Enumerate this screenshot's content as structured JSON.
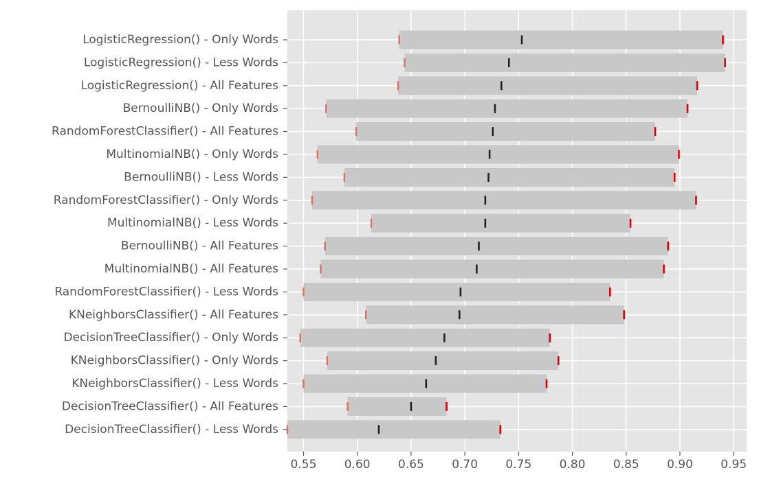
{
  "chart_data": {
    "type": "range-bar",
    "title": "",
    "xlabel": "",
    "ylabel": "",
    "xlim": [
      0.535,
      0.962
    ],
    "xticks": [
      0.55,
      0.6,
      0.65,
      0.7,
      0.75,
      0.8,
      0.85,
      0.9,
      0.95
    ],
    "xtick_labels": [
      "0.55",
      "0.60",
      "0.65",
      "0.70",
      "0.75",
      "0.80",
      "0.85",
      "0.90",
      "0.95"
    ],
    "grid": true,
    "colors": {
      "background": "#e5e5e5",
      "grid": "#ffffff",
      "bar": "#c8c8c8",
      "min_marker": "#e07060",
      "max_marker": "#dd0000",
      "mean_marker": "#222222"
    },
    "rows": [
      {
        "label": "LogisticRegression() - Only Words",
        "min": 0.639,
        "mean": 0.753,
        "max": 0.94
      },
      {
        "label": "LogisticRegression() - Less Words",
        "min": 0.644,
        "mean": 0.741,
        "max": 0.942
      },
      {
        "label": "LogisticRegression() - All Features",
        "min": 0.638,
        "mean": 0.734,
        "max": 0.916
      },
      {
        "label": "BernoulliNB() - Only Words",
        "min": 0.571,
        "mean": 0.728,
        "max": 0.907
      },
      {
        "label": "RandomForestClassifier() - All Features",
        "min": 0.599,
        "mean": 0.726,
        "max": 0.877
      },
      {
        "label": "MultinomialNB() - Only Words",
        "min": 0.563,
        "mean": 0.723,
        "max": 0.899
      },
      {
        "label": "BernoulliNB() - Less Words",
        "min": 0.588,
        "mean": 0.722,
        "max": 0.895
      },
      {
        "label": "RandomForestClassifier() - Only Words",
        "min": 0.558,
        "mean": 0.719,
        "max": 0.915
      },
      {
        "label": "MultinomialNB() - Less Words",
        "min": 0.613,
        "mean": 0.719,
        "max": 0.854
      },
      {
        "label": "BernoulliNB() - All Features",
        "min": 0.57,
        "mean": 0.713,
        "max": 0.889
      },
      {
        "label": "MultinomialNB() - All Features",
        "min": 0.566,
        "mean": 0.711,
        "max": 0.885
      },
      {
        "label": "RandomForestClassifier() - Less Words",
        "min": 0.55,
        "mean": 0.696,
        "max": 0.835
      },
      {
        "label": "KNeighborsClassifier() - All Features",
        "min": 0.608,
        "mean": 0.695,
        "max": 0.848
      },
      {
        "label": "DecisionTreeClassifier() - Only Words",
        "min": 0.547,
        "mean": 0.681,
        "max": 0.779
      },
      {
        "label": "KNeighborsClassifier() - Only Words",
        "min": 0.572,
        "mean": 0.673,
        "max": 0.787
      },
      {
        "label": "KNeighborsClassifier() - Less Words",
        "min": 0.55,
        "mean": 0.664,
        "max": 0.776
      },
      {
        "label": "DecisionTreeClassifier() - All Features",
        "min": 0.591,
        "mean": 0.65,
        "max": 0.683
      },
      {
        "label": "DecisionTreeClassifier() - Less Words",
        "min": 0.535,
        "mean": 0.62,
        "max": 0.733
      }
    ]
  }
}
